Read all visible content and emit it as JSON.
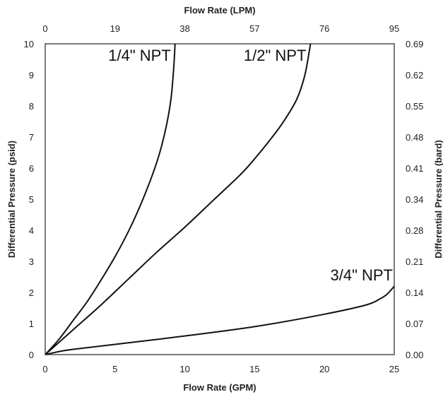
{
  "chart_data": {
    "type": "line",
    "title": "",
    "xlabel": "Flow Rate (GPM)",
    "ylabel": "Differential Pressure (psid)",
    "x2label": "Flow Rate (LPM)",
    "y2label": "Differential Pressure (bard)",
    "xlim": [
      0,
      25
    ],
    "ylim": [
      0,
      10
    ],
    "grid": false,
    "x_ticks": [
      0,
      5,
      10,
      15,
      20,
      25
    ],
    "y_ticks": [
      0,
      1,
      2,
      3,
      4,
      5,
      6,
      7,
      8,
      9,
      10
    ],
    "x2_tick_labels": [
      "0",
      "19",
      "38",
      "57",
      "76",
      "95"
    ],
    "y2_tick_labels": [
      "0.00",
      "0.07",
      "0.14",
      "0.21",
      "0.28",
      "0.34",
      "0.41",
      "0.48",
      "0.55",
      "0.62",
      "0.69"
    ],
    "series": [
      {
        "name": "1/4\" NPT",
        "x": [
          0,
          1,
          2,
          3,
          4,
          5,
          6,
          7,
          8,
          8.6,
          9,
          9.2,
          9.3
        ],
        "y": [
          0,
          0.5,
          1.1,
          1.7,
          2.4,
          3.15,
          4.0,
          5.0,
          6.2,
          7.2,
          8.2,
          9.2,
          10
        ]
      },
      {
        "name": "1/2\" NPT",
        "x": [
          0,
          2,
          4,
          6,
          8,
          10,
          12,
          14,
          15,
          16,
          17,
          18,
          18.6,
          19
        ],
        "y": [
          0,
          0.8,
          1.6,
          2.45,
          3.3,
          4.1,
          4.95,
          5.8,
          6.3,
          6.85,
          7.45,
          8.2,
          9.0,
          10
        ]
      },
      {
        "name": "3/4\" NPT",
        "x": [
          0,
          1,
          2,
          5,
          10,
          15,
          20,
          23,
          24,
          24.5,
          25
        ],
        "y": [
          0,
          0.1,
          0.17,
          0.33,
          0.6,
          0.9,
          1.3,
          1.6,
          1.8,
          1.95,
          2.2
        ]
      }
    ]
  }
}
